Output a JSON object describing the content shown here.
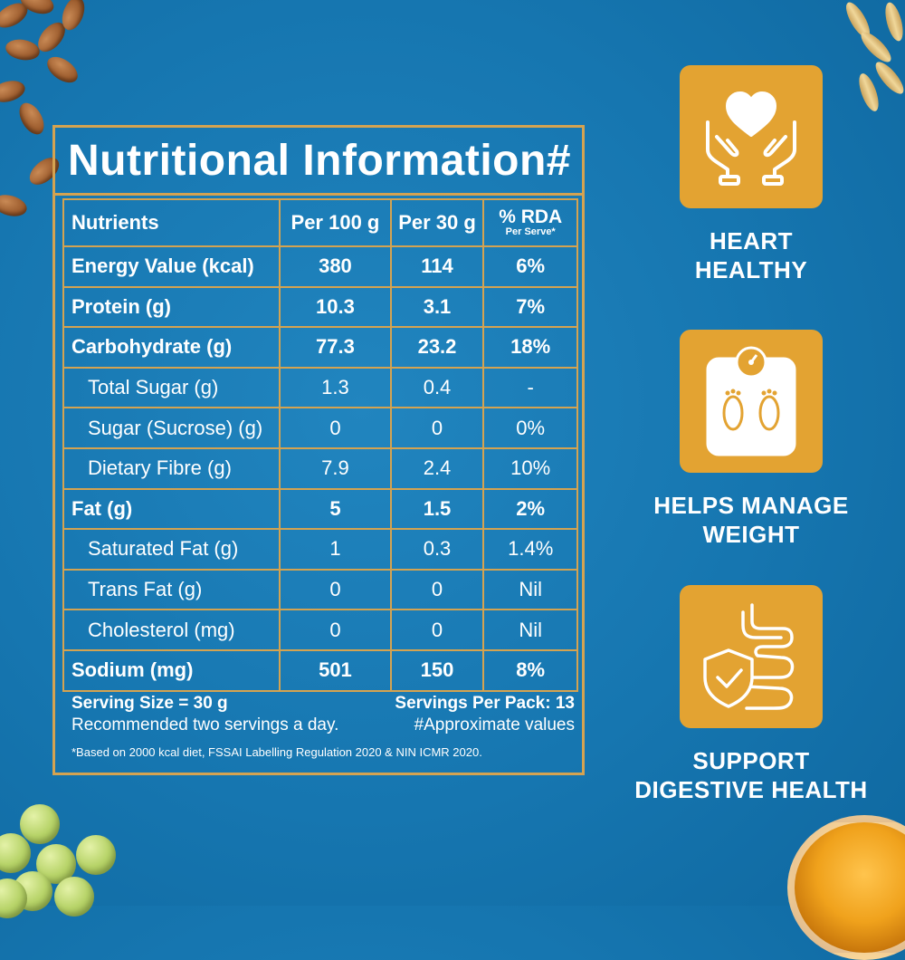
{
  "panel": {
    "title": "Nutritional Information#",
    "headers": {
      "nutrients": "Nutrients",
      "per100": "Per 100 g",
      "per30": "Per 30 g",
      "rda": "% RDA",
      "rda_sub": "Per Serve*"
    },
    "rows": [
      {
        "name": "Energy Value (kcal)",
        "per100": "380",
        "per30": "114",
        "rda": "6%"
      },
      {
        "name": "Protein (g)",
        "per100": "10.3",
        "per30": "3.1",
        "rda": "7%"
      },
      {
        "name": "Carbohydrate (g)",
        "per100": "77.3",
        "per30": "23.2",
        "rda": "18%"
      },
      {
        "name": "Total Sugar (g)",
        "per100": "1.3",
        "per30": "0.4",
        "rda": "-"
      },
      {
        "name": "Sugar (Sucrose) (g)",
        "per100": "0",
        "per30": "0",
        "rda": "0%"
      },
      {
        "name": "Dietary Fibre (g)",
        "per100": "7.9",
        "per30": "2.4",
        "rda": "10%"
      },
      {
        "name": "Fat (g)",
        "per100": "5",
        "per30": "1.5",
        "rda": "2%"
      },
      {
        "name": "Saturated Fat (g)",
        "per100": "1",
        "per30": "0.3",
        "rda": "1.4%"
      },
      {
        "name": "Trans Fat (g)",
        "per100": "0",
        "per30": "0",
        "rda": "Nil"
      },
      {
        "name": "Cholesterol (mg)",
        "per100": "0",
        "per30": "0",
        "rda": "Nil"
      },
      {
        "name": "Sodium (mg)",
        "per100": "501",
        "per30": "150",
        "rda": "8%"
      }
    ],
    "footer": {
      "serving_size": "Serving Size = 30 g",
      "servings_per_pack": "Servings Per Pack: 13",
      "recommendation": "Recommended two servings a day.",
      "approx": "#Approximate values",
      "note": "*Based on 2000 kcal diet, FSSAI Labelling Regulation 2020 & NIN ICMR 2020."
    }
  },
  "benefits": [
    {
      "label_line1": "HEART",
      "label_line2": "HEALTHY",
      "icon": "heart-hands-icon"
    },
    {
      "label_line1": "HELPS MANAGE",
      "label_line2": "WEIGHT",
      "icon": "weighing-scale-icon"
    },
    {
      "label_line1": "SUPPORT",
      "label_line2": "DIGESTIVE HEALTH",
      "icon": "digestive-shield-icon"
    }
  ],
  "colors": {
    "background": "#1676b0",
    "accent_gold": "#d4a351",
    "badge": "#e3a332",
    "text": "#ffffff"
  }
}
